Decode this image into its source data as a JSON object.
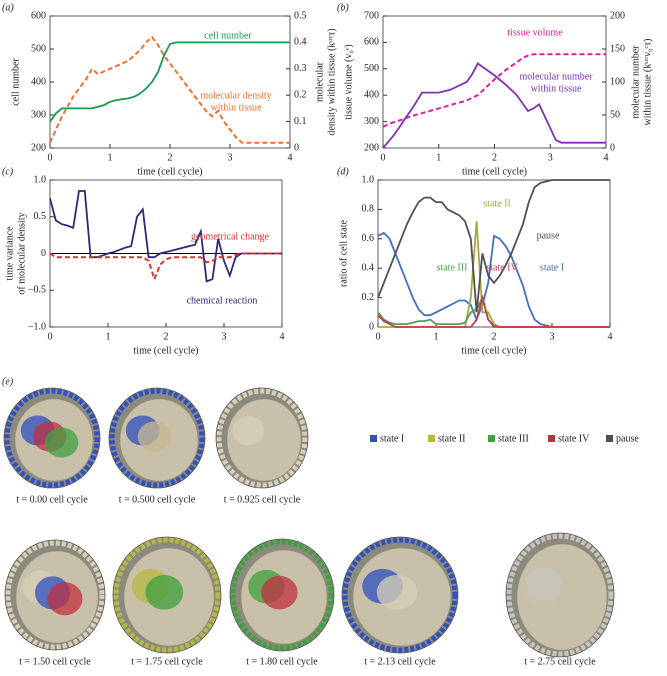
{
  "chart_data": [
    {
      "type": "line",
      "label": "(a)",
      "xlabel": "time (cell cycle)",
      "ylabel": "cell number",
      "y2label": [
        "molecular",
        "density within tissue (kˢʳᶜτ)"
      ],
      "x": [
        0,
        0.1,
        0.2,
        0.3,
        0.4,
        0.5,
        0.6,
        0.7,
        0.8,
        0.9,
        1,
        1.1,
        1.2,
        1.3,
        1.4,
        1.5,
        1.6,
        1.7,
        1.8,
        1.9,
        2,
        2.1,
        2.2,
        2.3,
        2.4,
        2.5,
        2.6,
        2.7,
        2.8,
        2.9,
        3,
        3.1,
        3.2,
        3.3,
        3.4,
        3.5,
        3.6,
        3.7,
        3.8,
        3.9,
        4
      ],
      "xlim": [
        0,
        4
      ],
      "xticks": [
        0,
        1,
        2,
        3,
        4
      ],
      "ylim": [
        200,
        600
      ],
      "yticks": [
        200,
        300,
        400,
        500,
        600
      ],
      "y2lim": [
        0,
        0.5
      ],
      "y2ticks": [
        0,
        0.1,
        0.2,
        0.3,
        0.4,
        0.5
      ],
      "series": [
        {
          "name": "cell number",
          "color": "#1a9a50",
          "dash": false,
          "values": [
            280,
            305,
            320,
            320,
            320,
            320,
            320,
            320,
            325,
            330,
            340,
            345,
            348,
            350,
            355,
            365,
            380,
            400,
            430,
            480,
            515,
            520,
            520,
            520,
            520,
            520,
            520,
            520,
            520,
            520,
            520,
            520,
            520,
            520,
            520,
            520,
            520,
            520,
            520,
            520,
            520
          ]
        },
        {
          "name": "molecular density within tissue",
          "color": "#f07030",
          "dash": true,
          "axis": "y2",
          "values": [
            0.02,
            0.07,
            0.12,
            0.16,
            0.2,
            0.23,
            0.26,
            0.3,
            0.28,
            0.29,
            0.3,
            0.31,
            0.32,
            0.33,
            0.35,
            0.37,
            0.4,
            0.42,
            0.39,
            0.35,
            0.32,
            0.29,
            0.26,
            0.23,
            0.2,
            0.17,
            0.14,
            0.12,
            0.14,
            0.1,
            0.07,
            0.04,
            0.02,
            0.02,
            0.02,
            0.02,
            0.02,
            0.02,
            0.02,
            0.02,
            0.02
          ]
        }
      ],
      "annotations": [
        "cell number",
        "molecular density",
        "within tissue"
      ]
    },
    {
      "type": "line",
      "label": "(b)",
      "xlabel": "time (cell cycle)",
      "ylabel": "tissue volume (v₀ᶜ)",
      "y2label": [
        "molecular number",
        "within tissue (kˢʳᶜv₀ᶜτ)"
      ],
      "x": [
        0,
        0.1,
        0.2,
        0.3,
        0.4,
        0.5,
        0.6,
        0.7,
        0.8,
        0.9,
        1,
        1.1,
        1.2,
        1.3,
        1.4,
        1.5,
        1.6,
        1.7,
        1.8,
        1.9,
        2,
        2.1,
        2.2,
        2.3,
        2.4,
        2.5,
        2.6,
        2.7,
        2.8,
        2.9,
        3,
        3.1,
        3.2,
        3.3,
        3.4,
        3.5,
        3.6,
        3.7,
        3.8,
        3.9,
        4
      ],
      "xlim": [
        0,
        4
      ],
      "xticks": [
        0,
        1,
        2,
        3,
        4
      ],
      "ylim": [
        200,
        700
      ],
      "yticks": [
        200,
        300,
        400,
        500,
        600,
        700
      ],
      "y2lim": [
        0,
        200
      ],
      "y2ticks": [
        0,
        50,
        100,
        150,
        200
      ],
      "series": [
        {
          "name": "tissue volume",
          "color": "#e020a0",
          "dash": true,
          "values": [
            280,
            290,
            298,
            305,
            312,
            320,
            326,
            332,
            338,
            344,
            350,
            356,
            362,
            368,
            374,
            380,
            390,
            400,
            420,
            440,
            460,
            478,
            495,
            510,
            525,
            540,
            550,
            555,
            555,
            555,
            555,
            555,
            555,
            555,
            555,
            555,
            555,
            555,
            555,
            555,
            555
          ]
        },
        {
          "name": "molecular number within tissue",
          "color": "#8030b0",
          "dash": false,
          "axis": "y2",
          "values": [
            0,
            10,
            20,
            32,
            45,
            57,
            70,
            84,
            84,
            84,
            84,
            86,
            88,
            92,
            96,
            100,
            112,
            128,
            122,
            116,
            110,
            103,
            96,
            88,
            80,
            68,
            56,
            60,
            66,
            48,
            30,
            12,
            8,
            8,
            8,
            8,
            8,
            8,
            8,
            8,
            8
          ]
        }
      ],
      "annotations": [
        "tissue volume",
        "molecular number",
        "within tissue"
      ]
    },
    {
      "type": "line",
      "label": "(c)",
      "xlabel": "time (cell cycle)",
      "ylabel": [
        "time variance",
        "of molecular density"
      ],
      "zero_line": true,
      "x": [
        0,
        0.1,
        0.2,
        0.3,
        0.4,
        0.5,
        0.6,
        0.7,
        0.8,
        0.9,
        1,
        1.1,
        1.2,
        1.3,
        1.4,
        1.5,
        1.6,
        1.7,
        1.8,
        1.9,
        2,
        2.1,
        2.2,
        2.3,
        2.4,
        2.5,
        2.6,
        2.7,
        2.8,
        2.9,
        3,
        3.1,
        3.2,
        3.3,
        3.4,
        3.5,
        3.6,
        3.7,
        3.8,
        3.9,
        4
      ],
      "xlim": [
        0,
        4
      ],
      "xticks": [
        0,
        1,
        2,
        3,
        4
      ],
      "ylim": [
        -1,
        1
      ],
      "yticks": [
        {
          "value": -1,
          "label": "−1.0"
        },
        {
          "value": -0.5,
          "label": "−0.5"
        },
        0,
        0.5,
        {
          "value": 1,
          "label": "1.0"
        }
      ],
      "series": [
        {
          "name": "chemical reaction",
          "color": "#2a2a78",
          "dash": false,
          "values": [
            0.75,
            0.45,
            0.4,
            0.38,
            0.35,
            0.85,
            0.85,
            -0.05,
            -0.05,
            -0.03,
            0,
            0.02,
            0.05,
            0.08,
            0.1,
            0.5,
            0.6,
            -0.05,
            -0.05,
            0,
            0.02,
            0.04,
            0.06,
            0.08,
            0.1,
            0.12,
            0.3,
            -0.38,
            -0.35,
            0.2,
            -0.1,
            -0.3,
            -0.05,
            0,
            0,
            0,
            0,
            0,
            0,
            0,
            0
          ]
        },
        {
          "name": "geometrical change",
          "color": "#e03030",
          "dash": true,
          "values": [
            0,
            -0.05,
            -0.05,
            -0.05,
            -0.05,
            -0.05,
            -0.05,
            -0.05,
            -0.05,
            -0.05,
            -0.05,
            -0.05,
            -0.05,
            -0.05,
            -0.05,
            -0.05,
            -0.05,
            -0.1,
            -0.35,
            -0.15,
            -0.08,
            -0.05,
            -0.05,
            -0.05,
            -0.05,
            -0.05,
            -0.05,
            -0.12,
            -0.1,
            -0.05,
            -0.05,
            -0.05,
            -0.02,
            0,
            0,
            0,
            0,
            0,
            0,
            0,
            0
          ]
        }
      ],
      "annotations": [
        "geometrical change",
        "chemical reaction"
      ]
    },
    {
      "type": "line",
      "label": "(d)",
      "xlabel": "time (cell cycle)",
      "ylabel": "ratio of cell state",
      "x": [
        0,
        0.1,
        0.2,
        0.3,
        0.4,
        0.5,
        0.6,
        0.7,
        0.8,
        0.9,
        1,
        1.1,
        1.2,
        1.3,
        1.4,
        1.5,
        1.6,
        1.7,
        1.8,
        1.9,
        2,
        2.1,
        2.2,
        2.3,
        2.4,
        2.5,
        2.6,
        2.7,
        2.8,
        2.9,
        3,
        3.1,
        3.2,
        3.3,
        3.4,
        3.5,
        3.6,
        3.7,
        3.8,
        3.9,
        4
      ],
      "xlim": [
        0,
        4
      ],
      "xticks": [
        0,
        1,
        2,
        3,
        4
      ],
      "ylim": [
        0,
        1
      ],
      "yticks": [
        0,
        0.2,
        0.4,
        0.6,
        0.8,
        {
          "value": 1,
          "label": "1.0"
        }
      ],
      "series": [
        {
          "name": "state I",
          "color": "#4070c0",
          "dash": false,
          "values": [
            0.62,
            0.64,
            0.6,
            0.5,
            0.4,
            0.3,
            0.2,
            0.12,
            0.08,
            0.08,
            0.1,
            0.12,
            0.14,
            0.16,
            0.18,
            0.18,
            0.15,
            0.05,
            0.15,
            0.3,
            0.62,
            0.6,
            0.55,
            0.48,
            0.38,
            0.28,
            0.14,
            0.05,
            0.02,
            0.01,
            0,
            0,
            0,
            0,
            0,
            0,
            0,
            0,
            0,
            0,
            0
          ]
        },
        {
          "name": "state II",
          "color": "#a8a840",
          "dash": false,
          "values": [
            0,
            0,
            0,
            0,
            0,
            0,
            0,
            0,
            0,
            0,
            0,
            0,
            0,
            0,
            0,
            0,
            0.2,
            0.72,
            0.1,
            0.1,
            0.02,
            0,
            0,
            0,
            0,
            0,
            0,
            0,
            0,
            0,
            0,
            0,
            0,
            0,
            0,
            0,
            0,
            0,
            0,
            0,
            0
          ]
        },
        {
          "name": "state III",
          "color": "#50a050",
          "dash": false,
          "values": [
            0.1,
            0.05,
            0.03,
            0.02,
            0.02,
            0.02,
            0.03,
            0.04,
            0.04,
            0.05,
            0.02,
            0.02,
            0.02,
            0.02,
            0.02,
            0.03,
            0.1,
            0.12,
            0.2,
            0.05,
            0.01,
            0,
            0,
            0,
            0,
            0,
            0,
            0,
            0,
            0,
            0,
            0,
            0,
            0,
            0,
            0,
            0,
            0,
            0,
            0,
            0
          ]
        },
        {
          "name": "state IV",
          "color": "#c04050",
          "dash": false,
          "values": [
            0.08,
            0.04,
            0.02,
            0,
            0,
            0,
            0,
            0,
            0,
            0,
            0,
            0,
            0,
            0,
            0,
            0,
            0,
            0.05,
            0.2,
            0.05,
            0,
            0,
            0,
            0,
            0,
            0,
            0,
            0,
            0,
            0,
            0,
            0,
            0,
            0,
            0,
            0,
            0,
            0,
            0,
            0,
            0
          ]
        },
        {
          "name": "pause",
          "color": "#505050",
          "dash": false,
          "values": [
            0.2,
            0.3,
            0.4,
            0.5,
            0.6,
            0.7,
            0.78,
            0.85,
            0.88,
            0.88,
            0.85,
            0.85,
            0.8,
            0.78,
            0.76,
            0.72,
            0.6,
            0.1,
            0.5,
            0.35,
            0.3,
            0.35,
            0.42,
            0.5,
            0.6,
            0.7,
            0.85,
            0.95,
            0.98,
            0.99,
            1,
            1,
            1,
            1,
            1,
            1,
            1,
            1,
            1,
            1,
            1
          ]
        }
      ],
      "annotations": [
        "state II",
        "state III",
        "state IV",
        "state I",
        "pause"
      ]
    }
  ],
  "panel_e": {
    "label": "(e)",
    "legend": [
      {
        "name": "state I",
        "color": "#3050c0"
      },
      {
        "name": "state II",
        "color": "#b8b840"
      },
      {
        "name": "state III",
        "color": "#40a040"
      },
      {
        "name": "state IV",
        "color": "#c03040"
      },
      {
        "name": "pause",
        "color": "#505050"
      }
    ],
    "captions": [
      "t = 0.00 cell cycle",
      "t = 0.500 cell cycle",
      "t = 0.925 cell cycle",
      "t = 1.50 cell cycle",
      "t = 1.75 cell cycle",
      "t = 1.80 cell cycle",
      "t = 2.13 cell cycle",
      "t = 2.75 cell cycle"
    ]
  }
}
